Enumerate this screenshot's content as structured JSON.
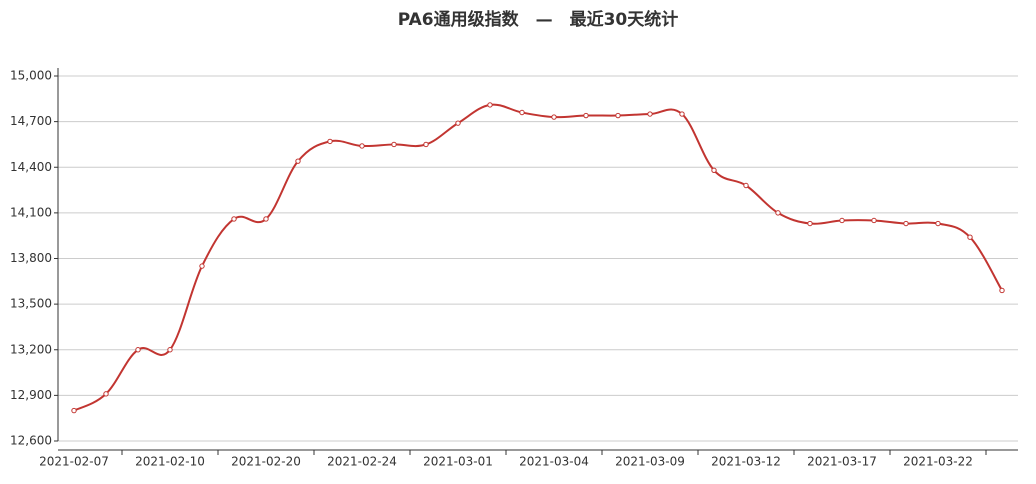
{
  "chart_data": {
    "type": "line",
    "title": "PA6通用级指数　—　最近30天统计",
    "categories": [
      "2021-02-07",
      null,
      null,
      "2021-02-10",
      null,
      null,
      "2021-02-20",
      null,
      null,
      "2021-02-24",
      null,
      null,
      "2021-03-01",
      null,
      null,
      "2021-03-04",
      null,
      null,
      "2021-03-09",
      null,
      null,
      "2021-03-12",
      null,
      null,
      "2021-03-17",
      null,
      null,
      "2021-03-22",
      null,
      null
    ],
    "series": [
      {
        "color": "#c23531",
        "values": [
          12800,
          12910,
          13200,
          13200,
          13750,
          14060,
          14060,
          14440,
          14570,
          14540,
          14550,
          14550,
          14690,
          14810,
          14760,
          14730,
          14740,
          14740,
          14750,
          14750,
          14380,
          14280,
          14100,
          14030,
          14050,
          14050,
          14030,
          14030,
          13940,
          13590
        ]
      }
    ],
    "ylim": [
      12600,
      15000
    ],
    "yticks": [
      {
        "value": 12600,
        "label": "12,600"
      },
      {
        "value": 12900,
        "label": "12,900"
      },
      {
        "value": 13200,
        "label": "13,200"
      },
      {
        "value": 13500,
        "label": "13,500"
      },
      {
        "value": 13800,
        "label": "13,800"
      },
      {
        "value": 14100,
        "label": "14,100"
      },
      {
        "value": 14400,
        "label": "14,400"
      },
      {
        "value": 14700,
        "label": "14,700"
      },
      {
        "value": 15000,
        "label": "15,000"
      }
    ],
    "grid": true
  }
}
